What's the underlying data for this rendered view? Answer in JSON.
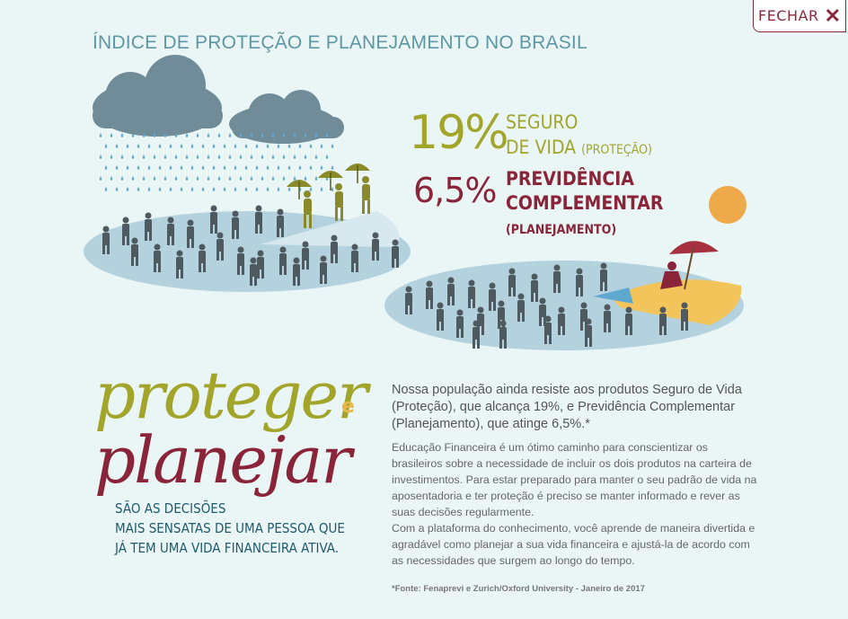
{
  "header": {
    "title": "ÍNDICE DE PROTEÇÃO E PLANEJAMENTO NO BRASIL",
    "close_label": "FECHAR"
  },
  "stats": {
    "protection_pct": "19%",
    "protection_label": "SEGURO",
    "protection_label_2": "DE VIDA",
    "protection_note": "(PROTEÇÃO)",
    "planning_pct": "6,5%",
    "planning_label": "PREVIDÊNCIA",
    "planning_label_2": "COMPLEMENTAR",
    "planning_note": "(PLANEJAMENTO)"
  },
  "headline": {
    "word1": "proteger",
    "connector": "e",
    "word2": "planejar",
    "tagline_1": "SÃO AS DECISÕES",
    "tagline_2": "MAIS SENSATAS DE UMA PESSOA QUE",
    "tagline_3": "JÁ TEM UMA VIDA FINANCEIRA ATIVA."
  },
  "body": {
    "lead": "Nossa população ainda resiste aos produtos Seguro de Vida (Proteção), que alcança 19%, e Previdência Complementar (Planejamento), que atinge 6,5%.*",
    "paragraph_1": "Educação Financeira é um ótimo caminho para conscientizar os brasileiros sobre a necessidade de incluir os dois produtos na carteira de investimentos. Para estar preparado para manter o seu padrão de vida na aposentadoria e ter proteção é preciso se manter informado e rever as suas decisões regularmente.",
    "paragraph_2": "Com a plataforma do conhecimento, você aprende de maneira divertida e agradável como planejar a sua vida financeira e ajustá-la de acordo com as necessidades que surgem ao longo do tempo.",
    "footnote": "*Fonte: Fenaprevi e Zurich/Oxford University - Janeiro de 2017"
  },
  "colors": {
    "background": "#eaf6f6",
    "olive": "#a2a52a",
    "wine": "#8a2438",
    "teal": "#5e97a3",
    "cloud": "#6f8c98",
    "rain": "#5fa8d0",
    "disc": "#b4d2de",
    "person": "#4e5a60",
    "sun": "#eeaa4a",
    "sand": "#f2c45a"
  }
}
